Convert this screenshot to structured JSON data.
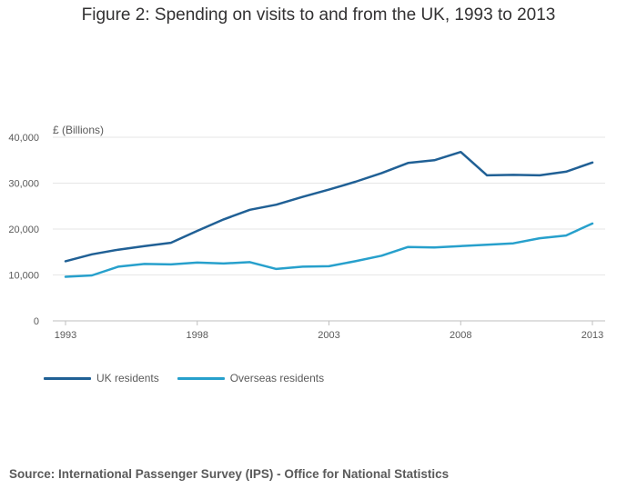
{
  "chart_data": {
    "type": "line",
    "title": "Figure 2: Spending on visits to and from the UK, 1993 to 2013",
    "ylabel": "£ (Billions)",
    "xlabel": "",
    "x": [
      1993,
      1994,
      1995,
      1996,
      1997,
      1998,
      1999,
      2000,
      2001,
      2002,
      2003,
      2004,
      2005,
      2006,
      2007,
      2008,
      2009,
      2010,
      2011,
      2012,
      2013
    ],
    "xticks": [
      1993,
      1998,
      2003,
      2008,
      2013
    ],
    "yticks": [
      0,
      10000,
      20000,
      30000,
      40000
    ],
    "ytick_labels": [
      "0",
      "10,000",
      "20,000",
      "30,000",
      "40,000"
    ],
    "ylim": [
      0,
      40000
    ],
    "grid": true,
    "legend_position": "bottom-left",
    "series": [
      {
        "name": "UK residents",
        "color": "#206095",
        "values": [
          13000,
          14500,
          15500,
          16300,
          17000,
          19600,
          22100,
          24200,
          25300,
          27000,
          28600,
          30300,
          32200,
          34400,
          35000,
          36800,
          31700,
          31800,
          31700,
          32500,
          34500
        ]
      },
      {
        "name": "Overseas residents",
        "color": "#27a0cc",
        "values": [
          9600,
          9900,
          11800,
          12400,
          12300,
          12700,
          12500,
          12800,
          11300,
          11800,
          11900,
          13000,
          14200,
          16100,
          16000,
          16300,
          16600,
          16900,
          18000,
          18600,
          21200
        ]
      }
    ]
  },
  "source": "Source: International Passenger Survey (IPS) - Office for National Statistics"
}
